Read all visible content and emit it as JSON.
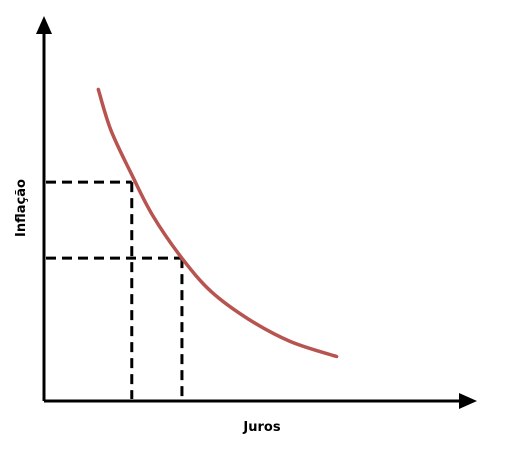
{
  "chart_data": {
    "type": "line",
    "title": "",
    "xlabel": "Juros",
    "ylabel": "Inflação",
    "xlim": [
      0,
      10
    ],
    "ylim": [
      0,
      10
    ],
    "grid": false,
    "series": [
      {
        "color": "#b85450",
        "x": [
          1.3,
          1.6,
          2.1,
          2.6,
          3.3,
          4.0,
          4.9,
          5.9,
          7.0
        ],
        "y": [
          8.4,
          7.3,
          6.1,
          5.0,
          3.85,
          2.95,
          2.2,
          1.6,
          1.2
        ]
      }
    ],
    "guides": [
      {
        "x": 2.1,
        "y": 5.9
      },
      {
        "x": 3.3,
        "y": 3.85
      }
    ],
    "axis_color": "#000000"
  }
}
